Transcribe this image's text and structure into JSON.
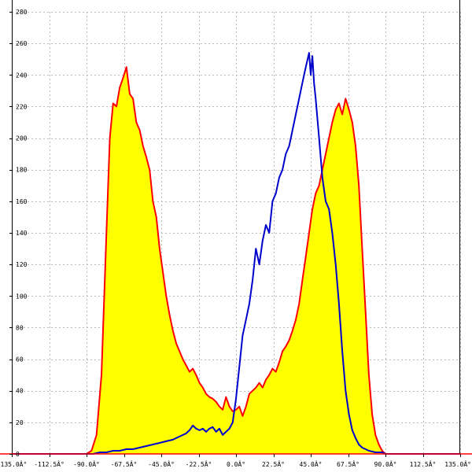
{
  "chart_data": {
    "type": "area",
    "grid": true,
    "xlim": [
      -135,
      135
    ],
    "ylim": [
      0,
      280
    ],
    "x_ticks": [
      -135,
      -112.5,
      -90,
      -67.5,
      -45,
      -22.5,
      0,
      22.5,
      45,
      67.5,
      90,
      112.5,
      135
    ],
    "x_tick_labels": [
      "-135.0Â°",
      "-112.5Â°",
      "-90.0Â°",
      "-67.5Â°",
      "-45.0Â°",
      "-22.5Â°",
      "0.0Â°",
      "22.5Â°",
      "45.0Â°",
      "67.5Â°",
      "90.0Â°",
      "112.5Â°",
      "135.0Â°"
    ],
    "y_ticks": [
      0,
      20,
      40,
      60,
      80,
      100,
      120,
      140,
      160,
      180,
      200,
      220,
      240,
      260,
      280
    ],
    "y_tick_labels": [
      "0",
      "20",
      "40",
      "60",
      "80",
      "100",
      "120",
      "140",
      "160",
      "180",
      "200",
      "220",
      "240",
      "260",
      "280"
    ],
    "series": [
      {
        "color": "#ff0000",
        "fill": "#ffff00",
        "x": [
          -135,
          -90,
          -87,
          -84,
          -81,
          -78,
          -76,
          -74,
          -72,
          -70,
          -68,
          -66,
          -64,
          -62,
          -60,
          -58,
          -56,
          -54,
          -52,
          -50,
          -48,
          -46,
          -44,
          -42,
          -40,
          -38,
          -36,
          -34,
          -32,
          -30,
          -28,
          -26,
          -24,
          -22,
          -20,
          -18,
          -16,
          -14,
          -12,
          -10,
          -8,
          -6,
          -4,
          -2,
          0,
          2,
          4,
          6,
          8,
          10,
          12,
          14,
          16,
          18,
          20,
          22,
          24,
          26,
          28,
          30,
          32,
          34,
          36,
          38,
          40,
          42,
          44,
          46,
          48,
          50,
          52,
          54,
          56,
          58,
          60,
          62,
          64,
          66,
          68,
          70,
          72,
          74,
          76,
          78,
          80,
          82,
          84,
          86,
          88,
          90,
          135
        ],
        "y": [
          0,
          0,
          2,
          12,
          50,
          140,
          200,
          222,
          220,
          232,
          238,
          245,
          228,
          225,
          210,
          205,
          195,
          188,
          180,
          160,
          150,
          130,
          115,
          100,
          88,
          78,
          70,
          65,
          60,
          56,
          52,
          54,
          50,
          45,
          42,
          38,
          36,
          35,
          33,
          30,
          28,
          36,
          30,
          27,
          28,
          30,
          24,
          30,
          38,
          40,
          42,
          45,
          42,
          47,
          50,
          54,
          52,
          58,
          65,
          68,
          72,
          78,
          85,
          95,
          110,
          125,
          140,
          155,
          165,
          170,
          180,
          190,
          200,
          210,
          218,
          222,
          215,
          225,
          218,
          210,
          195,
          170,
          130,
          90,
          50,
          25,
          12,
          6,
          2,
          0,
          0
        ]
      },
      {
        "color": "#0000cc",
        "fill": "none",
        "x": [
          -135,
          -90,
          -86,
          -82,
          -78,
          -74,
          -70,
          -66,
          -62,
          -58,
          -54,
          -50,
          -46,
          -42,
          -38,
          -34,
          -30,
          -28,
          -26,
          -24,
          -22,
          -20,
          -18,
          -16,
          -14,
          -12,
          -10,
          -8,
          -6,
          -4,
          -2,
          0,
          2,
          4,
          6,
          8,
          10,
          12,
          14,
          16,
          18,
          20,
          22,
          24,
          26,
          28,
          30,
          32,
          34,
          36,
          38,
          40,
          42,
          44,
          45,
          46,
          47,
          48,
          50,
          52,
          54,
          56,
          58,
          60,
          62,
          64,
          66,
          68,
          70,
          72,
          74,
          76,
          78,
          80,
          84,
          88,
          90,
          135
        ],
        "y": [
          0,
          0,
          0,
          1,
          1,
          2,
          2,
          3,
          3,
          4,
          5,
          6,
          7,
          8,
          9,
          11,
          13,
          15,
          18,
          16,
          15,
          16,
          14,
          16,
          17,
          14,
          16,
          12,
          14,
          16,
          20,
          35,
          55,
          75,
          85,
          95,
          110,
          130,
          120,
          135,
          145,
          140,
          160,
          165,
          175,
          180,
          190,
          195,
          205,
          215,
          225,
          235,
          245,
          254,
          240,
          252,
          235,
          225,
          200,
          175,
          160,
          155,
          140,
          120,
          95,
          65,
          40,
          25,
          15,
          10,
          6,
          4,
          3,
          2,
          1,
          1,
          0,
          0
        ]
      }
    ]
  }
}
